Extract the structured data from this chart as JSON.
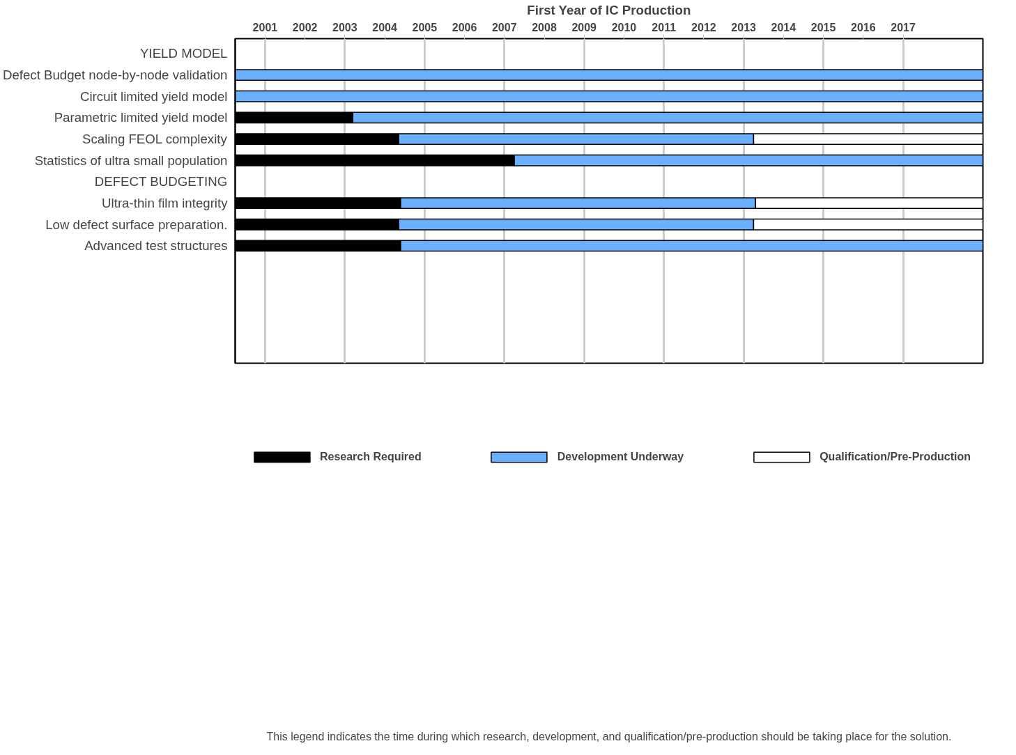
{
  "chart_data": {
    "type": "bar",
    "orientation": "horizontal",
    "xlabel": "First Year of IC Production",
    "categories": [
      "YIELD MODEL",
      "Defect Budget node-by-node validation",
      "Circuit limited yield model",
      "Parametric limited yield model",
      "Scaling FEOL complexity",
      "Statistics of ultra small population",
      "DEFECT BUDGETING",
      "Ultra-thin film integrity",
      "Low defect surface preparation.",
      "Advanced test structures"
    ],
    "series": [
      {
        "name": "Research Required",
        "color": "#000000",
        "base": [
          null,
          null,
          null,
          2000.25,
          2000.25,
          2000.25,
          null,
          2000.25,
          2000.25,
          2000.25
        ],
        "values": [
          null,
          null,
          null,
          2.95,
          4.1,
          7.0,
          null,
          4.15,
          4.1,
          4.15
        ]
      },
      {
        "name": "Development Underway",
        "color": "#6ab0ff",
        "base": [
          null,
          2000.25,
          2000.25,
          2003.2,
          2004.35,
          2007.25,
          null,
          2004.4,
          2004.35,
          2004.4
        ],
        "values": [
          null,
          18.75,
          18.75,
          15.8,
          8.9,
          11.75,
          null,
          8.9,
          8.9,
          14.6
        ]
      },
      {
        "name": "Qualification/Pre-Production",
        "color": "#ffffff",
        "base": [
          null,
          null,
          null,
          null,
          2013.25,
          null,
          null,
          2013.3,
          2013.25,
          null
        ],
        "values": [
          null,
          null,
          null,
          null,
          5.75,
          null,
          null,
          5.7,
          5.75,
          null
        ]
      }
    ],
    "xlim": [
      2000.25,
      2019
    ],
    "xticks": [
      2001,
      2002,
      2003,
      2004,
      2005,
      2006,
      2007,
      2008,
      2009,
      2010,
      2011,
      2012,
      2013,
      2014,
      2015,
      2016,
      2017
    ],
    "grid": "x",
    "legend": "bottom",
    "annotations": [
      "This legend indicates the time during which research, development, and qualification/pre-production should be taking place for the solution."
    ]
  }
}
